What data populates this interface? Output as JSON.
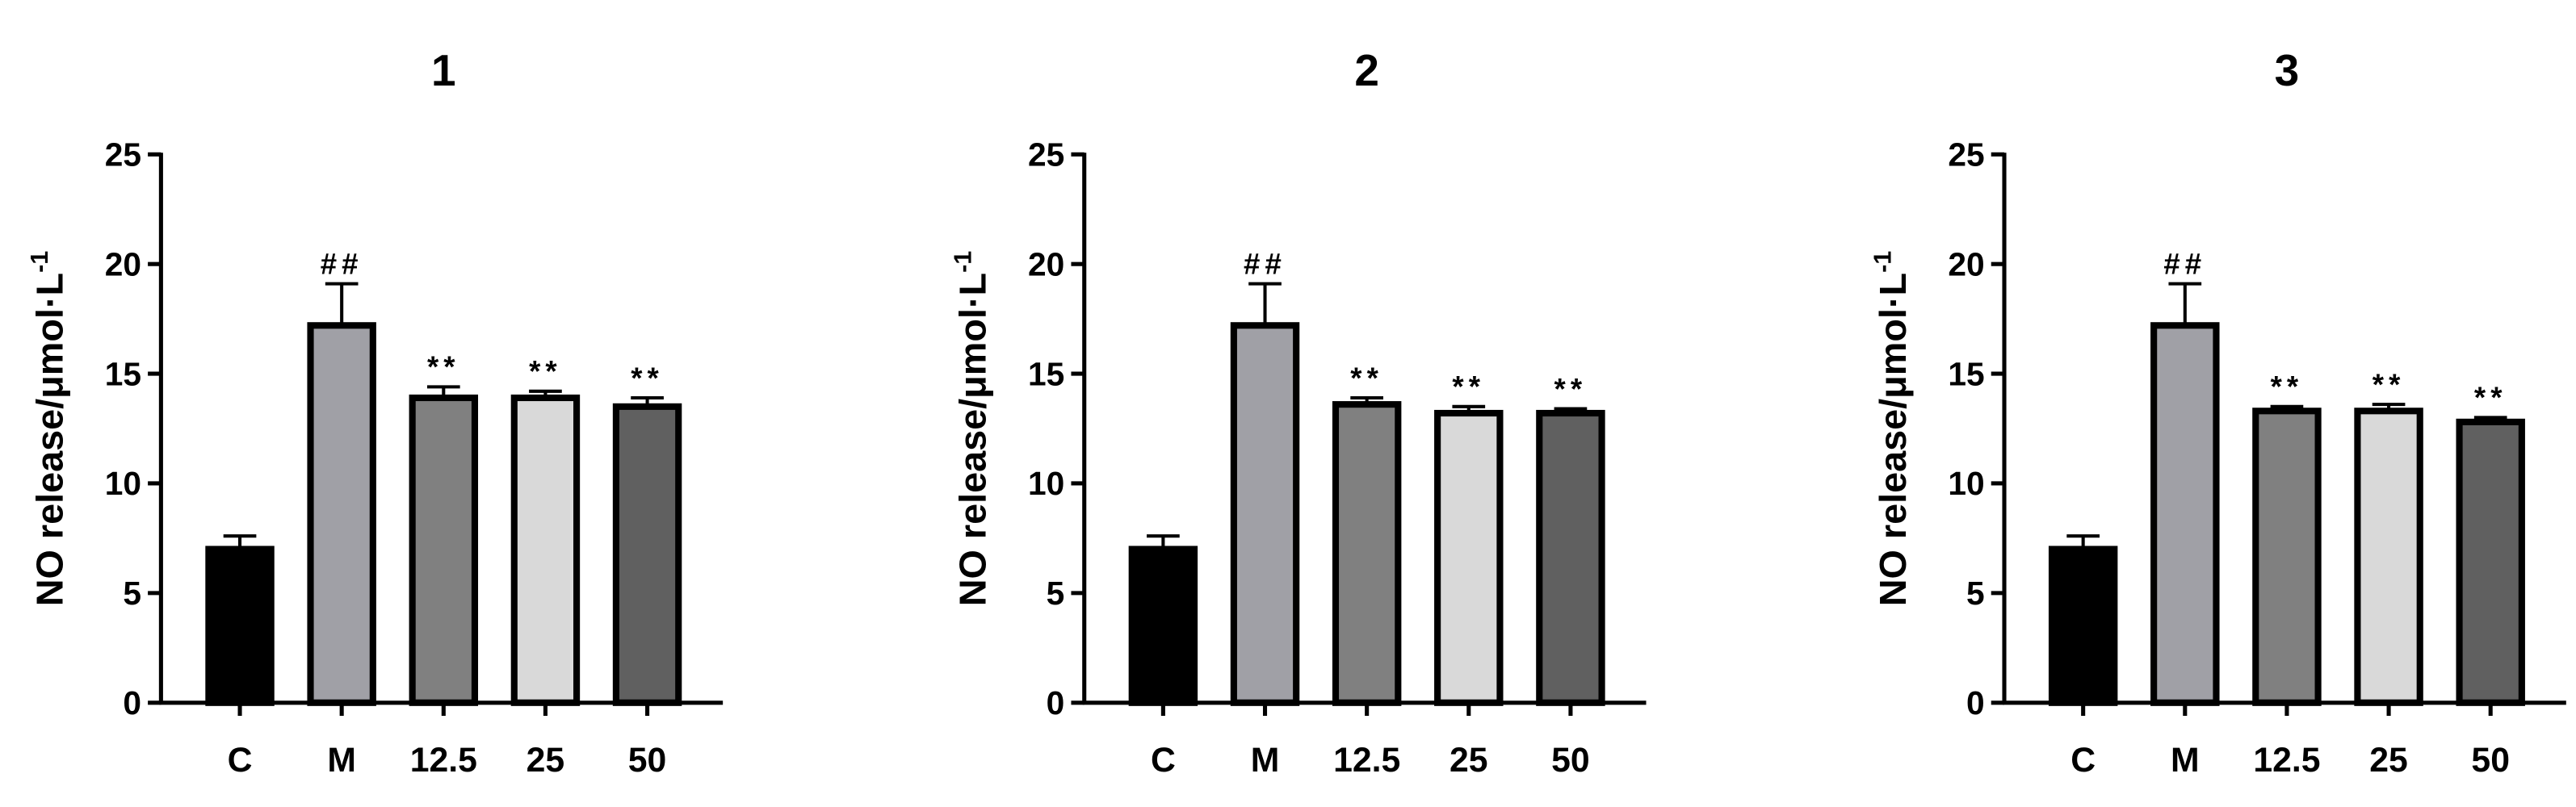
{
  "chart_data": [
    {
      "type": "bar",
      "title": "1",
      "ylabel": "NO release/μmol·L",
      "ylabel_sup": "-1",
      "categories": [
        "C",
        "M",
        "12.5",
        "25",
        "50"
      ],
      "values": [
        7.0,
        17.2,
        13.9,
        13.9,
        13.5
      ],
      "errors": [
        0.6,
        1.9,
        0.5,
        0.3,
        0.4
      ],
      "annotations": [
        null,
        "##",
        "**",
        "**",
        "**"
      ],
      "colors": [
        "#000000",
        "#a0a0a6",
        "#808080",
        "#d9d9d9",
        "#606060"
      ],
      "ylim": [
        0,
        25
      ],
      "yticks": [
        0,
        5,
        10,
        15,
        20,
        25
      ]
    },
    {
      "type": "bar",
      "title": "2",
      "ylabel": "NO release/μmol·L",
      "ylabel_sup": "-1",
      "categories": [
        "C",
        "M",
        "12.5",
        "25",
        "50"
      ],
      "values": [
        7.0,
        17.2,
        13.6,
        13.2,
        13.2
      ],
      "errors": [
        0.6,
        1.9,
        0.3,
        0.3,
        0.2
      ],
      "annotations": [
        null,
        "##",
        "**",
        "**",
        "**"
      ],
      "colors": [
        "#000000",
        "#a0a0a6",
        "#808080",
        "#d9d9d9",
        "#606060"
      ],
      "ylim": [
        0,
        25
      ],
      "yticks": [
        0,
        5,
        10,
        15,
        20,
        25
      ]
    },
    {
      "type": "bar",
      "title": "3",
      "ylabel": "NO release/μmol·L",
      "ylabel_sup": "-1",
      "categories": [
        "C",
        "M",
        "12.5",
        "25",
        "50"
      ],
      "values": [
        7.0,
        17.2,
        13.3,
        13.3,
        12.8
      ],
      "errors": [
        0.6,
        1.9,
        0.2,
        0.3,
        0.2
      ],
      "annotations": [
        null,
        "##",
        "**",
        "**",
        "**"
      ],
      "colors": [
        "#000000",
        "#a0a0a6",
        "#808080",
        "#d9d9d9",
        "#606060"
      ],
      "ylim": [
        0,
        25
      ],
      "yticks": [
        0,
        5,
        10,
        15,
        20,
        25
      ]
    }
  ]
}
